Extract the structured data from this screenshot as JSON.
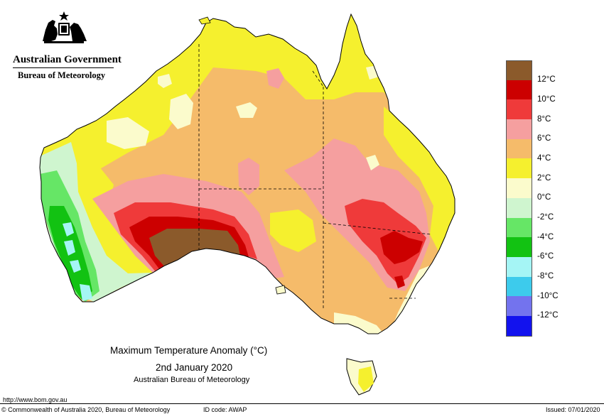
{
  "header": {
    "government": "Australian Government",
    "agency": "Bureau of Meteorology"
  },
  "legend": {
    "ticks": [
      "12°C",
      "10°C",
      "8°C",
      "6°C",
      "4°C",
      "2°C",
      "0°C",
      "-2°C",
      "-4°C",
      "-6°C",
      "-8°C",
      "-10°C",
      "-12°C"
    ],
    "colors": [
      "#8b5a2b",
      "#cc0000",
      "#ef3a3a",
      "#f59f9f",
      "#f5bb6a",
      "#f5f02e",
      "#fbfbcc",
      "#cff5cf",
      "#66e666",
      "#12c212",
      "#a5f5f5",
      "#3dcbec",
      "#7373ee",
      "#1212ee"
    ]
  },
  "map": {
    "title": "Maximum Temperature Anomaly (°C)",
    "date": "2nd January 2020",
    "source": "Australian Bureau of Meteorology"
  },
  "footer": {
    "url": "http://www.bom.gov.au",
    "copyright": "© Commonwealth of Australia 2020, Bureau of Meteorology",
    "id_code": "ID code: AWAP",
    "issued": "Issued: 07/01/2020"
  }
}
